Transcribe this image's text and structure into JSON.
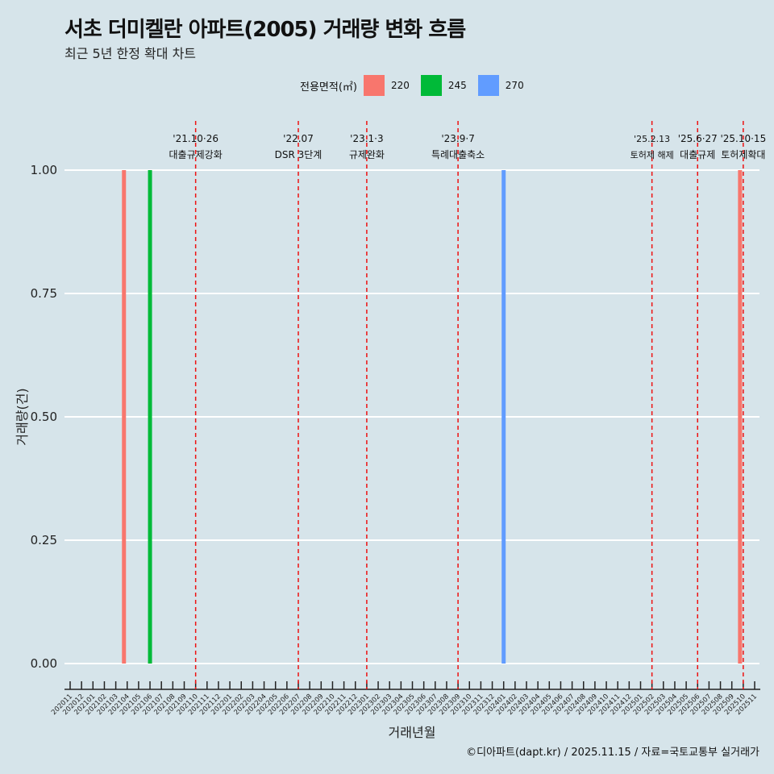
{
  "chart_data": {
    "type": "bar",
    "title": "서초 더미켈란 아파트(2005) 거래량 변화 흐름",
    "subtitle": "최근 5년 한정 확대 차트",
    "xlabel": "거래년월",
    "ylabel": "거래량(건)",
    "ylim": [
      0,
      1
    ],
    "yticks": [
      "0.00",
      "0.25",
      "0.50",
      "0.75",
      "1.00"
    ],
    "legend_title": "전용면적(㎡)",
    "legend_position": "top",
    "categories": [
      "202011",
      "202012",
      "202101",
      "202102",
      "202103",
      "202104",
      "202105",
      "202106",
      "202107",
      "202108",
      "202109",
      "202110",
      "202111",
      "202112",
      "202201",
      "202202",
      "202203",
      "202204",
      "202205",
      "202206",
      "202207",
      "202208",
      "202209",
      "202210",
      "202211",
      "202212",
      "202301",
      "202302",
      "202303",
      "202304",
      "202305",
      "202306",
      "202307",
      "202308",
      "202309",
      "202310",
      "202311",
      "202312",
      "202401",
      "202402",
      "202403",
      "202404",
      "202405",
      "202406",
      "202407",
      "202408",
      "202409",
      "202410",
      "202411",
      "202412",
      "202501",
      "202502",
      "202503",
      "202504",
      "202505",
      "202506",
      "202507",
      "202508",
      "202509",
      "202510",
      "202511"
    ],
    "series": [
      {
        "name": "220",
        "color": "#f8766d",
        "points": [
          {
            "x": "202104",
            "y": 1
          },
          {
            "x": "202510",
            "y": 1
          }
        ]
      },
      {
        "name": "245",
        "color": "#00ba38",
        "points": [
          {
            "x": "202106",
            "y": 1
          }
        ]
      },
      {
        "name": "270",
        "color": "#619cff",
        "points": [
          {
            "x": "202401",
            "y": 1
          }
        ]
      }
    ],
    "annotations": [
      {
        "x": "202110",
        "date": "'21.10·26",
        "label": "대출규제강화"
      },
      {
        "x": "202207",
        "date": "'22.07",
        "label": "DSR 3단계"
      },
      {
        "x": "202301",
        "date": "'23.1·3",
        "label": "규제완화"
      },
      {
        "x": "202309",
        "date": "'23.9·7",
        "label": "특례대출축소"
      },
      {
        "x": "202502",
        "date": "'25.2.13",
        "label": "토허제 해제"
      },
      {
        "x": "202506",
        "date": "'25.6·27",
        "label": "대출규제"
      },
      {
        "x": "202510",
        "date": "'25.10·15",
        "label": "토허제확대"
      }
    ]
  },
  "caption": "©디아파트(dapt.kr) / 2025.11.15 / 자료=국토교통부 실거래가"
}
